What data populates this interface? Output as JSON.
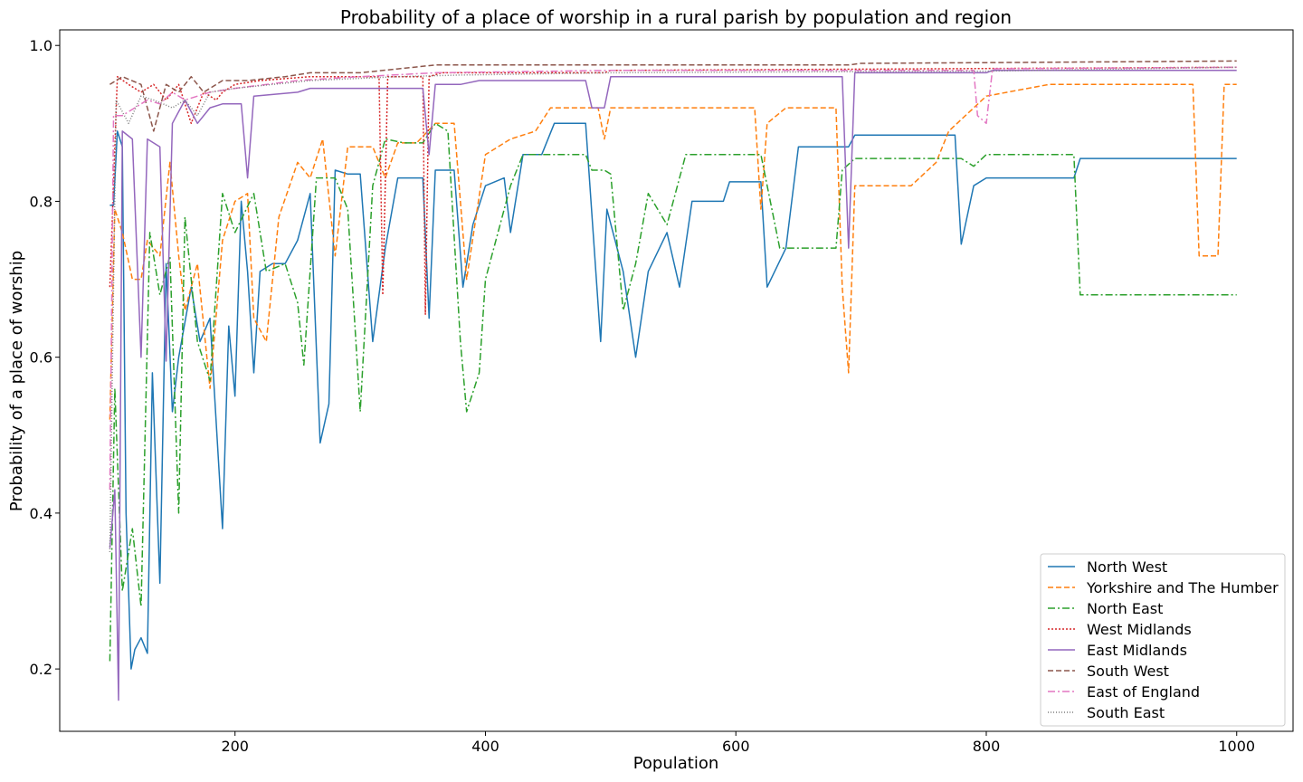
{
  "chart_data": {
    "type": "line",
    "title": "Probability of a place of worship in a rural parish by population and region",
    "xlabel": "Population",
    "ylabel": "Probability of a place of worship",
    "xlim": [
      60,
      1045
    ],
    "ylim": [
      0.12,
      1.02
    ],
    "xticks": [
      200,
      400,
      600,
      800,
      1000
    ],
    "yticks": [
      0.2,
      0.4,
      0.6,
      0.8,
      1.0
    ],
    "xtick_labels": [
      "200",
      "400",
      "600",
      "800",
      "1000"
    ],
    "ytick_labels": [
      "0.2",
      "0.4",
      "0.6",
      "0.8",
      "1.0"
    ],
    "grid": false,
    "legend_position": "bottom-right",
    "series": [
      {
        "name": "North West",
        "color": "#1f77b4",
        "dash": "solid",
        "points": [
          [
            100,
            0.795
          ],
          [
            103,
            0.795
          ],
          [
            106,
            0.89
          ],
          [
            110,
            0.87
          ],
          [
            113,
            0.4
          ],
          [
            117,
            0.2
          ],
          [
            120,
            0.225
          ],
          [
            125,
            0.24
          ],
          [
            130,
            0.22
          ],
          [
            134,
            0.58
          ],
          [
            140,
            0.31
          ],
          [
            145,
            0.72
          ],
          [
            150,
            0.53
          ],
          [
            155,
            0.6
          ],
          [
            165,
            0.69
          ],
          [
            172,
            0.62
          ],
          [
            180,
            0.65
          ],
          [
            190,
            0.38
          ],
          [
            195,
            0.64
          ],
          [
            200,
            0.55
          ],
          [
            205,
            0.8
          ],
          [
            210,
            0.71
          ],
          [
            215,
            0.58
          ],
          [
            220,
            0.71
          ],
          [
            230,
            0.72
          ],
          [
            240,
            0.72
          ],
          [
            250,
            0.75
          ],
          [
            260,
            0.81
          ],
          [
            268,
            0.49
          ],
          [
            275,
            0.54
          ],
          [
            280,
            0.84
          ],
          [
            290,
            0.835
          ],
          [
            300,
            0.835
          ],
          [
            310,
            0.62
          ],
          [
            320,
            0.74
          ],
          [
            330,
            0.83
          ],
          [
            340,
            0.83
          ],
          [
            350,
            0.83
          ],
          [
            355,
            0.65
          ],
          [
            360,
            0.84
          ],
          [
            375,
            0.84
          ],
          [
            382,
            0.69
          ],
          [
            390,
            0.77
          ],
          [
            400,
            0.82
          ],
          [
            415,
            0.83
          ],
          [
            420,
            0.76
          ],
          [
            430,
            0.86
          ],
          [
            445,
            0.86
          ],
          [
            455,
            0.9
          ],
          [
            480,
            0.9
          ],
          [
            492,
            0.62
          ],
          [
            497,
            0.79
          ],
          [
            510,
            0.71
          ],
          [
            520,
            0.6
          ],
          [
            530,
            0.71
          ],
          [
            545,
            0.76
          ],
          [
            555,
            0.69
          ],
          [
            565,
            0.8
          ],
          [
            590,
            0.8
          ],
          [
            595,
            0.825
          ],
          [
            620,
            0.825
          ],
          [
            625,
            0.69
          ],
          [
            640,
            0.74
          ],
          [
            650,
            0.87
          ],
          [
            690,
            0.87
          ],
          [
            695,
            0.885
          ],
          [
            775,
            0.885
          ],
          [
            780,
            0.745
          ],
          [
            790,
            0.82
          ],
          [
            800,
            0.83
          ],
          [
            870,
            0.83
          ],
          [
            875,
            0.855
          ],
          [
            1000,
            0.855
          ]
        ]
      },
      {
        "name": "Yorkshire and The Humber",
        "color": "#ff7f0e",
        "dash": "6,3",
        "points": [
          [
            100,
            0.52
          ],
          [
            104,
            0.79
          ],
          [
            110,
            0.76
          ],
          [
            118,
            0.7
          ],
          [
            125,
            0.7
          ],
          [
            130,
            0.75
          ],
          [
            140,
            0.73
          ],
          [
            148,
            0.85
          ],
          [
            155,
            0.73
          ],
          [
            160,
            0.66
          ],
          [
            170,
            0.72
          ],
          [
            180,
            0.56
          ],
          [
            190,
            0.75
          ],
          [
            200,
            0.8
          ],
          [
            210,
            0.81
          ],
          [
            215,
            0.65
          ],
          [
            225,
            0.62
          ],
          [
            235,
            0.78
          ],
          [
            250,
            0.85
          ],
          [
            260,
            0.83
          ],
          [
            270,
            0.88
          ],
          [
            280,
            0.73
          ],
          [
            290,
            0.87
          ],
          [
            310,
            0.87
          ],
          [
            320,
            0.83
          ],
          [
            330,
            0.875
          ],
          [
            345,
            0.875
          ],
          [
            360,
            0.9
          ],
          [
            375,
            0.9
          ],
          [
            385,
            0.7
          ],
          [
            400,
            0.86
          ],
          [
            420,
            0.88
          ],
          [
            440,
            0.89
          ],
          [
            452,
            0.92
          ],
          [
            490,
            0.92
          ],
          [
            495,
            0.88
          ],
          [
            500,
            0.92
          ],
          [
            615,
            0.92
          ],
          [
            620,
            0.79
          ],
          [
            625,
            0.9
          ],
          [
            640,
            0.92
          ],
          [
            680,
            0.92
          ],
          [
            685,
            0.69
          ],
          [
            690,
            0.58
          ],
          [
            695,
            0.82
          ],
          [
            740,
            0.82
          ],
          [
            760,
            0.85
          ],
          [
            770,
            0.89
          ],
          [
            800,
            0.935
          ],
          [
            850,
            0.95
          ],
          [
            965,
            0.95
          ],
          [
            970,
            0.73
          ],
          [
            985,
            0.73
          ],
          [
            990,
            0.95
          ],
          [
            1000,
            0.95
          ]
        ]
      },
      {
        "name": "North East",
        "color": "#2ca02c",
        "dash": "8,3,2,3",
        "points": [
          [
            100,
            0.21
          ],
          [
            104,
            0.56
          ],
          [
            110,
            0.3
          ],
          [
            118,
            0.38
          ],
          [
            125,
            0.28
          ],
          [
            132,
            0.76
          ],
          [
            140,
            0.68
          ],
          [
            148,
            0.73
          ],
          [
            155,
            0.4
          ],
          [
            160,
            0.78
          ],
          [
            170,
            0.62
          ],
          [
            180,
            0.57
          ],
          [
            190,
            0.81
          ],
          [
            200,
            0.76
          ],
          [
            215,
            0.81
          ],
          [
            225,
            0.71
          ],
          [
            240,
            0.72
          ],
          [
            250,
            0.67
          ],
          [
            255,
            0.59
          ],
          [
            265,
            0.83
          ],
          [
            280,
            0.83
          ],
          [
            290,
            0.79
          ],
          [
            300,
            0.53
          ],
          [
            310,
            0.82
          ],
          [
            320,
            0.88
          ],
          [
            335,
            0.875
          ],
          [
            350,
            0.875
          ],
          [
            360,
            0.9
          ],
          [
            370,
            0.89
          ],
          [
            380,
            0.62
          ],
          [
            385,
            0.53
          ],
          [
            395,
            0.58
          ],
          [
            400,
            0.7
          ],
          [
            420,
            0.82
          ],
          [
            430,
            0.86
          ],
          [
            480,
            0.86
          ],
          [
            485,
            0.84
          ],
          [
            495,
            0.84
          ],
          [
            500,
            0.835
          ],
          [
            510,
            0.66
          ],
          [
            520,
            0.72
          ],
          [
            530,
            0.81
          ],
          [
            545,
            0.77
          ],
          [
            560,
            0.86
          ],
          [
            620,
            0.86
          ],
          [
            635,
            0.74
          ],
          [
            680,
            0.74
          ],
          [
            685,
            0.84
          ],
          [
            695,
            0.855
          ],
          [
            780,
            0.855
          ],
          [
            790,
            0.845
          ],
          [
            800,
            0.86
          ],
          [
            870,
            0.86
          ],
          [
            875,
            0.68
          ],
          [
            1000,
            0.68
          ]
        ]
      },
      {
        "name": "West Midlands",
        "color": "#d62728",
        "dash": "2,2",
        "points": [
          [
            100,
            0.69
          ],
          [
            106,
            0.96
          ],
          [
            115,
            0.95
          ],
          [
            125,
            0.94
          ],
          [
            135,
            0.95
          ],
          [
            145,
            0.93
          ],
          [
            155,
            0.95
          ],
          [
            165,
            0.9
          ],
          [
            175,
            0.94
          ],
          [
            185,
            0.93
          ],
          [
            190,
            0.94
          ],
          [
            200,
            0.95
          ],
          [
            220,
            0.955
          ],
          [
            260,
            0.96
          ],
          [
            315,
            0.96
          ],
          [
            318,
            0.68
          ],
          [
            322,
            0.96
          ],
          [
            350,
            0.96
          ],
          [
            352,
            0.655
          ],
          [
            355,
            0.96
          ],
          [
            365,
            0.965
          ],
          [
            495,
            0.965
          ],
          [
            500,
            0.968
          ],
          [
            1000,
            0.972
          ]
        ]
      },
      {
        "name": "East Midlands",
        "color": "#9467bd",
        "dash": "solid",
        "points": [
          [
            100,
            0.355
          ],
          [
            104,
            0.43
          ],
          [
            107,
            0.16
          ],
          [
            110,
            0.89
          ],
          [
            118,
            0.88
          ],
          [
            125,
            0.6
          ],
          [
            130,
            0.88
          ],
          [
            140,
            0.87
          ],
          [
            145,
            0.595
          ],
          [
            150,
            0.9
          ],
          [
            160,
            0.93
          ],
          [
            170,
            0.9
          ],
          [
            180,
            0.92
          ],
          [
            190,
            0.925
          ],
          [
            205,
            0.925
          ],
          [
            210,
            0.83
          ],
          [
            215,
            0.935
          ],
          [
            250,
            0.94
          ],
          [
            260,
            0.945
          ],
          [
            330,
            0.945
          ],
          [
            350,
            0.945
          ],
          [
            355,
            0.86
          ],
          [
            360,
            0.95
          ],
          [
            380,
            0.95
          ],
          [
            395,
            0.955
          ],
          [
            480,
            0.955
          ],
          [
            485,
            0.92
          ],
          [
            495,
            0.92
          ],
          [
            500,
            0.96
          ],
          [
            685,
            0.96
          ],
          [
            690,
            0.74
          ],
          [
            695,
            0.965
          ],
          [
            800,
            0.965
          ],
          [
            805,
            0.968
          ],
          [
            1000,
            0.968
          ]
        ]
      },
      {
        "name": "South West",
        "color": "#8c564b",
        "dash": "6,3",
        "points": [
          [
            100,
            0.95
          ],
          [
            110,
            0.96
          ],
          [
            125,
            0.95
          ],
          [
            135,
            0.89
          ],
          [
            145,
            0.95
          ],
          [
            155,
            0.94
          ],
          [
            165,
            0.96
          ],
          [
            175,
            0.94
          ],
          [
            190,
            0.955
          ],
          [
            210,
            0.955
          ],
          [
            240,
            0.96
          ],
          [
            260,
            0.965
          ],
          [
            300,
            0.965
          ],
          [
            330,
            0.97
          ],
          [
            360,
            0.975
          ],
          [
            420,
            0.975
          ],
          [
            500,
            0.975
          ],
          [
            690,
            0.975
          ],
          [
            700,
            0.977
          ],
          [
            800,
            0.978
          ],
          [
            1000,
            0.98
          ]
        ]
      },
      {
        "name": "East of England",
        "color": "#e377c2",
        "dash": "8,3,2,3",
        "points": [
          [
            100,
            0.43
          ],
          [
            103,
            0.91
          ],
          [
            110,
            0.91
          ],
          [
            120,
            0.92
          ],
          [
            130,
            0.93
          ],
          [
            140,
            0.925
          ],
          [
            150,
            0.94
          ],
          [
            160,
            0.93
          ],
          [
            180,
            0.94
          ],
          [
            200,
            0.945
          ],
          [
            250,
            0.955
          ],
          [
            300,
            0.96
          ],
          [
            360,
            0.965
          ],
          [
            500,
            0.968
          ],
          [
            790,
            0.968
          ],
          [
            793,
            0.91
          ],
          [
            800,
            0.9
          ],
          [
            805,
            0.97
          ],
          [
            1000,
            0.972
          ]
        ]
      },
      {
        "name": "South East",
        "color": "#7f7f7f",
        "dash": "1,2",
        "points": [
          [
            100,
            0.35
          ],
          [
            105,
            0.93
          ],
          [
            115,
            0.9
          ],
          [
            125,
            0.935
          ],
          [
            135,
            0.93
          ],
          [
            150,
            0.92
          ],
          [
            160,
            0.93
          ],
          [
            170,
            0.91
          ],
          [
            180,
            0.94
          ],
          [
            200,
            0.945
          ],
          [
            230,
            0.95
          ],
          [
            260,
            0.955
          ],
          [
            330,
            0.96
          ],
          [
            380,
            0.962
          ],
          [
            500,
            0.965
          ],
          [
            800,
            0.967
          ],
          [
            1000,
            0.972
          ]
        ]
      }
    ]
  }
}
